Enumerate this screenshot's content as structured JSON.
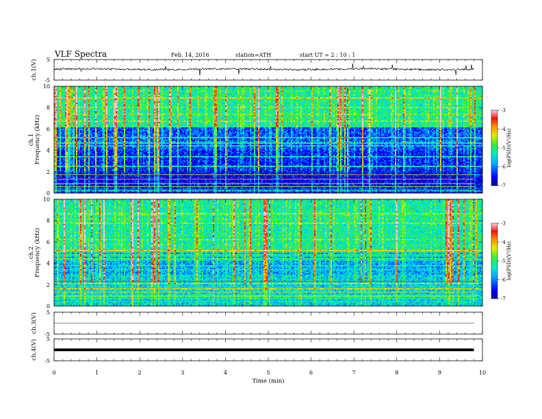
{
  "header": {
    "title": "VLF  Spectra",
    "date": "Feb. 14, 2016",
    "station": "station=ATH",
    "start": "start  UT  =   2  : 10 : 1"
  },
  "chart_data": [
    {
      "type": "line",
      "panel": "ch1-waveform",
      "ylabel": "ch.1(V)",
      "ylim": [
        -5,
        5
      ],
      "yticks": [
        "5",
        "-5"
      ],
      "xlim": [
        0,
        10
      ],
      "data_extent_min": 9.8,
      "baseline_v": 0.3
    },
    {
      "type": "heatmap",
      "panel": "ch1-spectrogram",
      "ylabel_ch": "ch.1",
      "ylabel": "Frequency  (kHz)",
      "ylim": [
        0,
        10
      ],
      "yticks": [
        "0",
        "2",
        "4",
        "6",
        "8",
        "10"
      ],
      "xlim": [
        0,
        10
      ],
      "colorbar": {
        "label": "log(PSD)(V²/Hz)",
        "range": [
          -7,
          -3
        ],
        "ticks": [
          "-3",
          "-4",
          "-5",
          "-6",
          "-7"
        ]
      }
    },
    {
      "type": "heatmap",
      "panel": "ch2-spectrogram",
      "ylabel_ch": "ch.2",
      "ylabel": "Frequency  (kHz)",
      "ylim": [
        0,
        10
      ],
      "yticks": [
        "0",
        "2",
        "4",
        "6",
        "8",
        "10"
      ],
      "xlim": [
        0,
        10
      ],
      "colorbar": {
        "label": "log(PSD)(V²/Hz)",
        "range": [
          -7,
          -3
        ],
        "ticks": [
          "-3",
          "-4",
          "-5",
          "-6",
          "-7"
        ]
      }
    },
    {
      "type": "line",
      "panel": "ch3-waveform",
      "ylabel": "ch.3(V)",
      "ylim": [
        -5,
        5
      ],
      "yticks": [
        "5",
        "-5"
      ],
      "xlim": [
        0,
        10
      ],
      "baseline_v": 0
    },
    {
      "type": "line",
      "panel": "ch4-waveform",
      "ylabel": "ch.4(V)",
      "ylim": [
        -5,
        5
      ],
      "yticks": [
        "5",
        "-5"
      ],
      "xlim": [
        0,
        10
      ],
      "baseline_v": 0
    }
  ],
  "xaxis": {
    "label": "Time  (min)",
    "ticks": [
      "0",
      "1",
      "2",
      "3",
      "4",
      "5",
      "6",
      "7",
      "8",
      "9",
      "10"
    ]
  }
}
